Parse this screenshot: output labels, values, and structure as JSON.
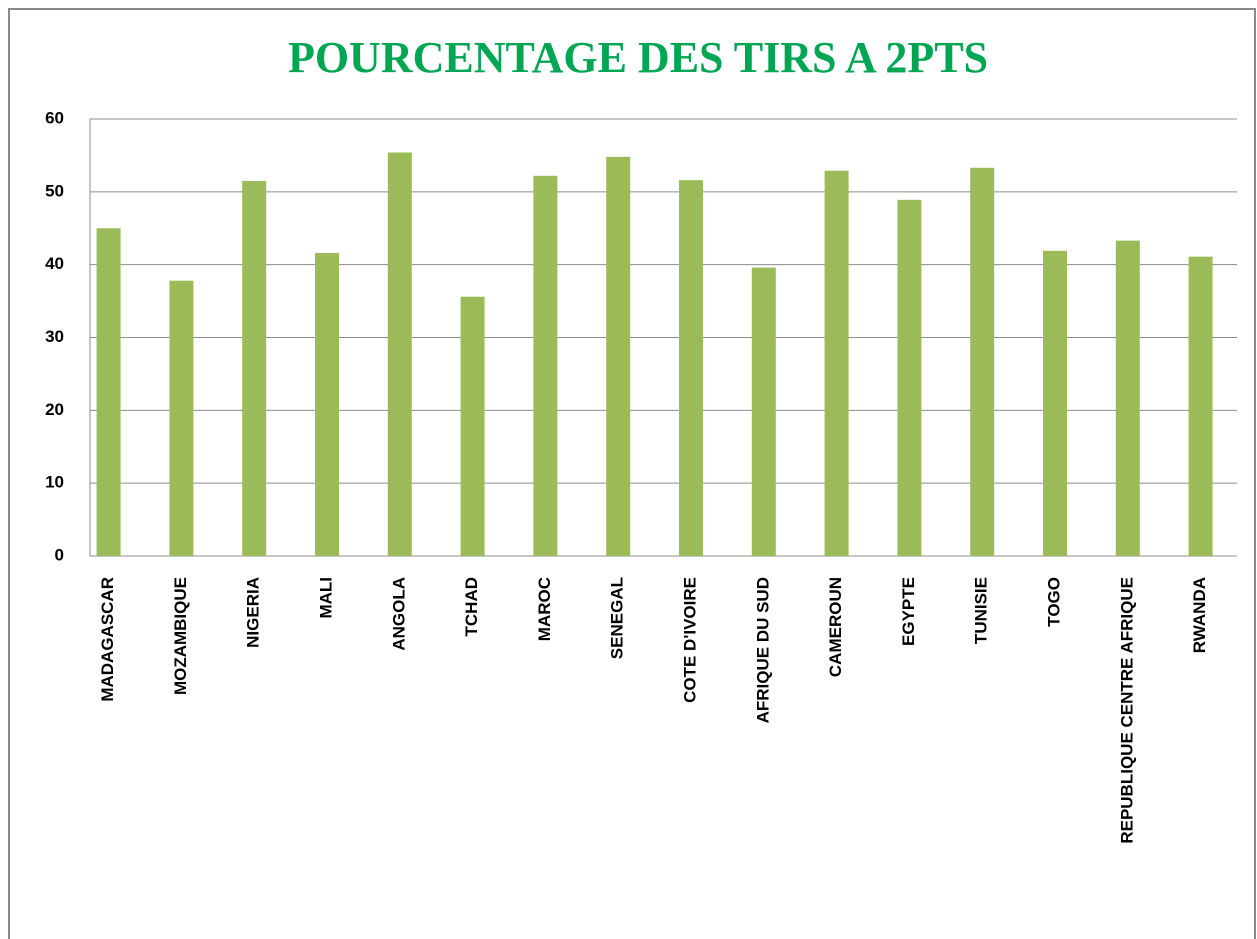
{
  "chart_data": {
    "type": "bar",
    "title": "POURCENTAGE DES TIRS A 2PTS",
    "categories": [
      "MADAGASCAR",
      "MOZAMBIQUE",
      "NIGERIA",
      "MALI",
      "ANGOLA",
      "TCHAD",
      "MAROC",
      "SENEGAL",
      "COTE D'IVOIRE",
      "AFRIQUE DU SUD",
      "CAMEROUN",
      "EGYPTE",
      "TUNISIE",
      "TOGO",
      "REPUBLIQUE CENTRE AFRIQUE",
      "RWANDA"
    ],
    "values": [
      45,
      37.8,
      51.5,
      41.6,
      55.4,
      35.6,
      52.2,
      54.8,
      51.6,
      39.6,
      52.9,
      48.9,
      53.3,
      41.9,
      43.3,
      41.1
    ],
    "color": "#9bbb59",
    "ylim": [
      0,
      60
    ],
    "yticks": [
      0,
      10,
      20,
      30,
      40,
      50,
      60
    ],
    "grid": true
  }
}
